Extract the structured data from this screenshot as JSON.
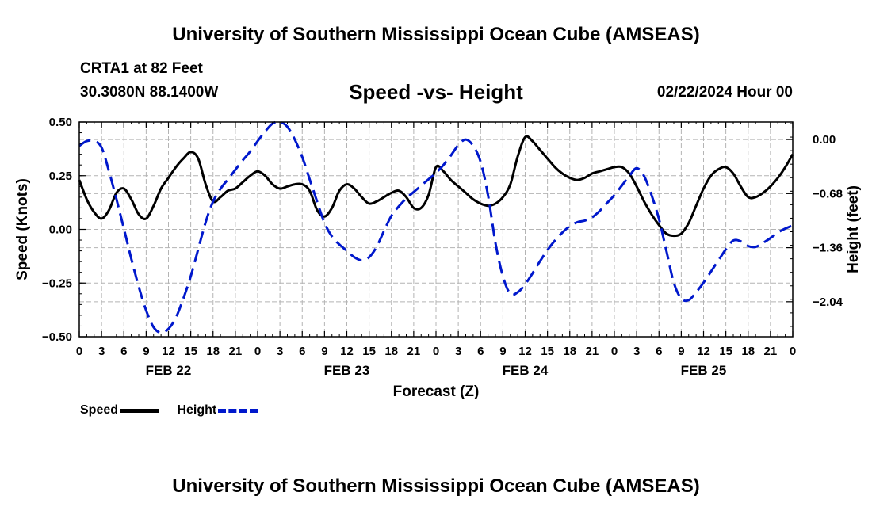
{
  "header": {
    "title": "University of Southern Mississippi Ocean Cube (AMSEAS)",
    "station": "CRTA1 at 82 Feet",
    "coords": "30.3080N  88.1400W",
    "subtitle": "Speed -vs- Height",
    "date_hour": "02/22/2024 Hour 00"
  },
  "footer": {
    "title": "University of Southern Mississippi Ocean Cube (AMSEAS)"
  },
  "chart_data": {
    "type": "line",
    "title": "Speed -vs- Height",
    "xlabel": "Forecast (Z)",
    "ylabel": "Speed (Knots)",
    "y2label": "Height (feet)",
    "xlim": [
      0,
      96
    ],
    "ylim": [
      -0.5,
      0.5
    ],
    "y2lim": [
      -2.48,
      0.22
    ],
    "x_ticks": [
      0,
      3,
      6,
      9,
      12,
      15,
      18,
      21,
      24,
      27,
      30,
      33,
      36,
      39,
      42,
      45,
      48,
      51,
      54,
      57,
      60,
      63,
      66,
      69,
      72,
      75,
      78,
      81,
      84,
      87,
      90,
      93,
      96
    ],
    "x_tick_labels": [
      "0",
      "3",
      "6",
      "9",
      "12",
      "15",
      "18",
      "21",
      "0",
      "3",
      "6",
      "9",
      "12",
      "15",
      "18",
      "21",
      "0",
      "3",
      "6",
      "9",
      "12",
      "15",
      "18",
      "21",
      "0",
      "3",
      "6",
      "9",
      "12",
      "15",
      "18",
      "21",
      "0"
    ],
    "day_labels": [
      {
        "x": 12,
        "label": "FEB 22"
      },
      {
        "x": 36,
        "label": "FEB 23"
      },
      {
        "x": 60,
        "label": "FEB 24"
      },
      {
        "x": 84,
        "label": "FEB 25"
      }
    ],
    "y_ticks": [
      0.5,
      0.25,
      0.0,
      -0.25,
      -0.5
    ],
    "y_tick_labels": [
      "0.50",
      "0.25",
      "0.00",
      "−0.25",
      "−0.50"
    ],
    "y2_ticks": [
      0.0,
      -0.68,
      -1.36,
      -2.04
    ],
    "y2_tick_labels": [
      "0.00",
      "−0.68",
      "−1.36",
      "−2.04"
    ],
    "grid": true,
    "legend": [
      "Speed",
      "Height"
    ],
    "series": [
      {
        "name": "Speed",
        "axis": "left",
        "color": "#000000",
        "dash": "solid",
        "x": [
          0,
          1,
          2,
          3,
          4,
          5,
          6,
          7,
          8,
          9,
          10,
          11,
          12,
          13,
          14,
          15,
          16,
          17,
          18,
          19,
          20,
          21,
          22,
          23,
          24,
          25,
          26,
          27,
          28,
          29,
          30,
          31,
          32,
          33,
          34,
          35,
          36,
          37,
          38,
          39,
          40,
          41,
          42,
          43,
          44,
          45,
          46,
          47,
          48,
          49,
          50,
          51,
          52,
          53,
          54,
          55,
          56,
          57,
          58,
          59,
          60,
          61,
          62,
          63,
          64,
          65,
          66,
          67,
          68,
          69,
          70,
          71,
          72,
          73,
          74,
          75,
          76,
          77,
          78,
          79,
          80,
          81,
          82,
          83,
          84,
          85,
          86,
          87,
          88,
          89,
          90,
          91,
          92,
          93,
          94,
          95,
          96
        ],
        "values": [
          0.23,
          0.14,
          0.08,
          0.05,
          0.09,
          0.17,
          0.19,
          0.14,
          0.07,
          0.05,
          0.11,
          0.19,
          0.24,
          0.29,
          0.33,
          0.36,
          0.33,
          0.21,
          0.13,
          0.15,
          0.18,
          0.19,
          0.22,
          0.25,
          0.27,
          0.25,
          0.21,
          0.19,
          0.2,
          0.21,
          0.21,
          0.18,
          0.09,
          0.06,
          0.1,
          0.18,
          0.21,
          0.19,
          0.15,
          0.12,
          0.13,
          0.15,
          0.17,
          0.18,
          0.15,
          0.1,
          0.1,
          0.16,
          0.29,
          0.27,
          0.23,
          0.2,
          0.17,
          0.14,
          0.12,
          0.11,
          0.12,
          0.15,
          0.21,
          0.34,
          0.43,
          0.41,
          0.37,
          0.33,
          0.29,
          0.26,
          0.24,
          0.23,
          0.24,
          0.26,
          0.27,
          0.28,
          0.29,
          0.29,
          0.26,
          0.2,
          0.13,
          0.07,
          0.02,
          -0.02,
          -0.03,
          -0.02,
          0.03,
          0.11,
          0.19,
          0.25,
          0.28,
          0.29,
          0.26,
          0.2,
          0.15,
          0.15,
          0.17,
          0.2,
          0.24,
          0.29,
          0.35
        ]
      },
      {
        "name": "Height",
        "axis": "right",
        "color": "#0018cc",
        "dash": "dashed",
        "x": [
          0,
          1,
          2,
          3,
          4,
          5,
          6,
          7,
          8,
          9,
          10,
          11,
          12,
          13,
          14,
          15,
          16,
          17,
          18,
          19,
          20,
          21,
          22,
          23,
          24,
          25,
          26,
          27,
          28,
          29,
          30,
          31,
          32,
          33,
          34,
          35,
          36,
          37,
          38,
          39,
          40,
          41,
          42,
          43,
          44,
          45,
          46,
          47,
          48,
          49,
          50,
          51,
          52,
          53,
          54,
          55,
          56,
          57,
          58,
          59,
          60,
          61,
          62,
          63,
          64,
          65,
          66,
          67,
          68,
          69,
          70,
          71,
          72,
          73,
          74,
          75,
          76,
          77,
          78,
          79,
          80,
          81,
          82,
          83,
          84,
          85,
          86,
          87,
          88,
          89,
          90,
          91,
          92,
          93,
          94,
          95,
          96
        ],
        "values": [
          -0.08,
          -0.02,
          -0.02,
          -0.1,
          -0.4,
          -0.75,
          -1.12,
          -1.5,
          -1.85,
          -2.15,
          -2.36,
          -2.43,
          -2.38,
          -2.24,
          -2.0,
          -1.72,
          -1.38,
          -1.04,
          -0.78,
          -0.62,
          -0.5,
          -0.38,
          -0.26,
          -0.15,
          -0.02,
          0.1,
          0.2,
          0.22,
          0.16,
          0.0,
          -0.22,
          -0.5,
          -0.78,
          -1.05,
          -1.22,
          -1.32,
          -1.4,
          -1.48,
          -1.52,
          -1.48,
          -1.35,
          -1.15,
          -0.96,
          -0.84,
          -0.74,
          -0.66,
          -0.58,
          -0.5,
          -0.42,
          -0.32,
          -0.2,
          -0.07,
          0.0,
          -0.08,
          -0.28,
          -0.7,
          -1.3,
          -1.72,
          -1.94,
          -1.92,
          -1.82,
          -1.68,
          -1.53,
          -1.39,
          -1.27,
          -1.17,
          -1.09,
          -1.04,
          -1.02,
          -0.98,
          -0.9,
          -0.8,
          -0.7,
          -0.58,
          -0.46,
          -0.36,
          -0.46,
          -0.7,
          -1.0,
          -1.4,
          -1.8,
          -2.0,
          -2.02,
          -1.92,
          -1.8,
          -1.66,
          -1.52,
          -1.38,
          -1.27,
          -1.28,
          -1.34,
          -1.35,
          -1.3,
          -1.24,
          -1.17,
          -1.12,
          -1.08
        ]
      }
    ]
  }
}
